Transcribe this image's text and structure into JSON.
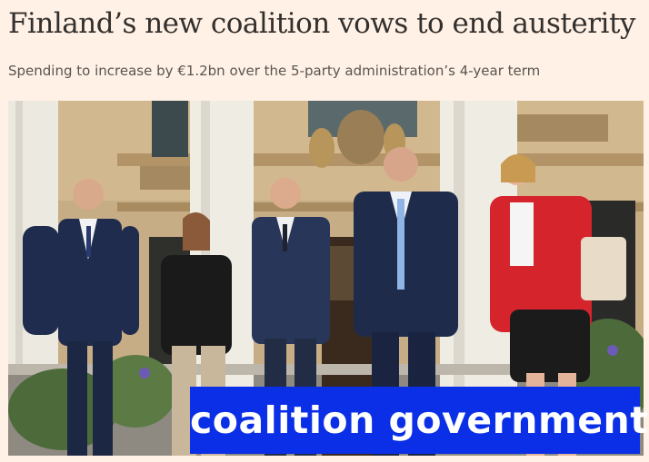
{
  "article": {
    "headline": "Finland’s new coalition vows to end austerity",
    "standfirst": "Spending to increase by €1.2bn over the 5-party administration’s 4-year term"
  },
  "photo": {
    "overlay_caption": "coalition government"
  },
  "colors": {
    "page_background": "#fff1e5",
    "headline_text": "#33302e",
    "standfirst_text": "#5a5552",
    "caption_background": "#0b2fe6",
    "caption_text": "#ffffff"
  }
}
